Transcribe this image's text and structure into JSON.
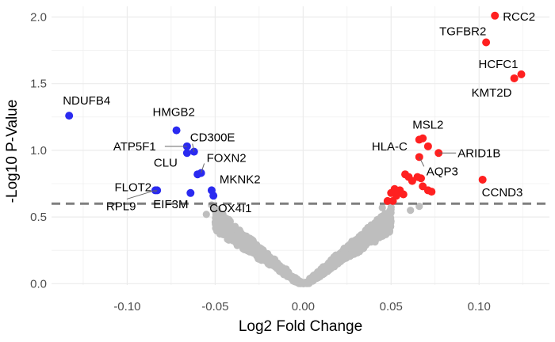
{
  "chart_data": {
    "type": "scatter",
    "subtype": "volcano",
    "title": "",
    "xlabel": "Log2 Fold Change",
    "ylabel": "-Log10 P-Value",
    "xlim": [
      -0.143,
      0.14
    ],
    "ylim": [
      -0.01,
      2.08
    ],
    "x_ticks": [
      -0.1,
      -0.05,
      0.0,
      0.05,
      0.1
    ],
    "x_tick_labels": [
      "-0.10",
      "-0.05",
      "0.00",
      "0.05",
      "0.10"
    ],
    "y_ticks": [
      0.0,
      0.5,
      1.0,
      1.5,
      2.0
    ],
    "y_tick_labels": [
      "0.0",
      "0.5",
      "1.0",
      "1.5",
      "2.0"
    ],
    "threshold": {
      "y": 0.6,
      "style": "dashed"
    },
    "grid": true,
    "colors": {
      "up": "#ff2020",
      "down": "#2a2af0",
      "ns": "#bebebe",
      "threshold": "#7f7f7f",
      "grid": "#ebebeb"
    },
    "down_regulated": [
      {
        "gene": "NDUFB4",
        "x": -0.133,
        "y": 1.26
      },
      {
        "gene": "HMGB2",
        "x": -0.072,
        "y": 1.15
      },
      {
        "gene": "ATP5F1",
        "x": -0.066,
        "y": 1.03
      },
      {
        "gene": "CD300E",
        "x": -0.062,
        "y": 0.99
      },
      {
        "gene": "CLU",
        "x": -0.066,
        "y": 0.98
      },
      {
        "gene": "FOXN2",
        "x": -0.058,
        "y": 0.83
      },
      {
        "gene": "",
        "x": -0.06,
        "y": 0.82
      },
      {
        "gene": "FLOT2",
        "x": -0.083,
        "y": 0.7
      },
      {
        "gene": "EIF3M",
        "x": -0.064,
        "y": 0.68
      },
      {
        "gene": "MKNK2",
        "x": -0.052,
        "y": 0.7
      },
      {
        "gene": "COX4I1",
        "x": -0.051,
        "y": 0.66
      },
      {
        "gene": "RPL9",
        "x": -0.084,
        "y": 0.7
      }
    ],
    "up_regulated": [
      {
        "gene": "RCC2",
        "x": 0.109,
        "y": 2.01
      },
      {
        "gene": "TGFBR2",
        "x": 0.104,
        "y": 1.81
      },
      {
        "gene": "HCFC1",
        "x": 0.124,
        "y": 1.57
      },
      {
        "gene": "KMT2D",
        "x": 0.12,
        "y": 1.54
      },
      {
        "gene": "MSL2",
        "x": 0.068,
        "y": 1.09
      },
      {
        "gene": "",
        "x": 0.066,
        "y": 1.08
      },
      {
        "gene": "HLA-C",
        "x": 0.071,
        "y": 1.03
      },
      {
        "gene": "ARID1B",
        "x": 0.077,
        "y": 0.98
      },
      {
        "gene": "AQP3",
        "x": 0.066,
        "y": 0.95
      },
      {
        "gene": "CCND3",
        "x": 0.102,
        "y": 0.78
      },
      {
        "gene": "",
        "x": 0.058,
        "y": 0.82
      },
      {
        "gene": "",
        "x": 0.06,
        "y": 0.8
      },
      {
        "gene": "",
        "x": 0.062,
        "y": 0.77
      },
      {
        "gene": "",
        "x": 0.065,
        "y": 0.8
      },
      {
        "gene": "",
        "x": 0.067,
        "y": 0.79
      },
      {
        "gene": "",
        "x": 0.068,
        "y": 0.73
      },
      {
        "gene": "",
        "x": 0.071,
        "y": 0.7
      },
      {
        "gene": "",
        "x": 0.073,
        "y": 0.69
      },
      {
        "gene": "",
        "x": 0.052,
        "y": 0.71
      },
      {
        "gene": "",
        "x": 0.055,
        "y": 0.7
      },
      {
        "gene": "",
        "x": 0.057,
        "y": 0.67
      },
      {
        "gene": "",
        "x": 0.053,
        "y": 0.66
      },
      {
        "gene": "",
        "x": 0.05,
        "y": 0.68
      },
      {
        "gene": "",
        "x": 0.048,
        "y": 0.62
      },
      {
        "gene": "",
        "x": 0.051,
        "y": 0.62
      }
    ],
    "not_significant_highlight": [
      {
        "x": -0.052,
        "y": 0.59
      },
      {
        "x": -0.055,
        "y": 0.52
      },
      {
        "x": -0.049,
        "y": 0.55
      },
      {
        "x": -0.046,
        "y": 0.5
      },
      {
        "x": 0.066,
        "y": 0.58
      },
      {
        "x": 0.061,
        "y": 0.55
      },
      {
        "x": 0.047,
        "y": 0.52
      },
      {
        "x": 0.049,
        "y": 0.45
      },
      {
        "x": 0.045,
        "y": 0.57
      }
    ],
    "not_significant_cloud": {
      "x_half_width": 0.05,
      "y_max": 0.58,
      "count": 1400
    }
  }
}
